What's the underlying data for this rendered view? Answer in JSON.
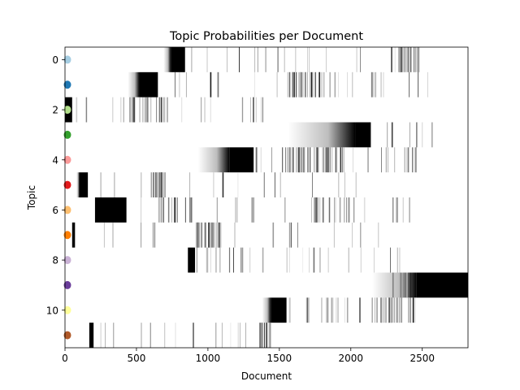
{
  "chart_data": {
    "type": "heatmap",
    "title": "Topic Probabilities per Document",
    "xlabel": "Document",
    "ylabel": "Topic",
    "xlim": [
      0,
      2820
    ],
    "ylim": [
      -0.5,
      11.5
    ],
    "y_inverted": true,
    "x_ticks": [
      0,
      500,
      1000,
      1500,
      2000,
      2500
    ],
    "x_tick_labels": [
      "0",
      "500",
      "1000",
      "1500",
      "2000",
      "2500"
    ],
    "y_ticks": [
      0,
      2,
      4,
      6,
      8,
      10
    ],
    "y_tick_labels": [
      "0",
      "2",
      "4",
      "6",
      "8",
      "10"
    ],
    "colormap": "Greys",
    "value_range": [
      0,
      1
    ],
    "topic_colors": [
      "#a6cee3",
      "#1f78b4",
      "#b2df8a",
      "#33a02c",
      "#fb9a99",
      "#e31a1c",
      "#fdbf6f",
      "#ff7f00",
      "#cab2d6",
      "#6a3d9a",
      "#ffff99",
      "#b15928"
    ],
    "rows": [
      {
        "topic": 0,
        "solid": [
          [
            740,
            840
          ]
        ],
        "fade_in": [
          [
            690,
            740
          ]
        ],
        "lines_range": [
          850,
          2480
        ],
        "dense_ranges": [
          [
            2280,
            2480
          ]
        ],
        "line_count": 44
      },
      {
        "topic": 1,
        "solid": [
          [
            520,
            650
          ]
        ],
        "fade_in": [
          [
            440,
            520
          ]
        ],
        "lines_range": [
          660,
          2540
        ],
        "dense_ranges": [
          [
            1560,
            1800
          ]
        ],
        "line_count": 60
      },
      {
        "topic": 2,
        "solid": [
          [
            0,
            50
          ]
        ],
        "fade_in": [],
        "lines_range": [
          60,
          1460
        ],
        "dense_ranges": [
          [
            450,
            700
          ]
        ],
        "line_count": 48
      },
      {
        "topic": 3,
        "solid": [
          [
            2030,
            2140
          ]
        ],
        "fade_in": [
          [
            1560,
            2030
          ]
        ],
        "lines_range": [
          2150,
          2600
        ],
        "dense_ranges": [],
        "line_count": 6
      },
      {
        "topic": 4,
        "solid": [
          [
            1150,
            1320
          ]
        ],
        "fade_in": [
          [
            930,
            1150
          ]
        ],
        "lines_range": [
          1330,
          2500
        ],
        "dense_ranges": [
          [
            1560,
            1950
          ]
        ],
        "line_count": 70
      },
      {
        "topic": 5,
        "solid": [
          [
            100,
            160
          ]
        ],
        "fade_in": [
          [
            80,
            100
          ]
        ],
        "lines_range": [
          170,
          2320
        ],
        "dense_ranges": [
          [
            600,
            700
          ]
        ],
        "line_count": 40
      },
      {
        "topic": 6,
        "solid": [
          [
            210,
            430
          ]
        ],
        "fade_in": [],
        "lines_range": [
          440,
          2430
        ],
        "dense_ranges": [
          [
            650,
            900
          ],
          [
            1700,
            2000
          ]
        ],
        "line_count": 56
      },
      {
        "topic": 7,
        "solid": [
          [
            50,
            70
          ]
        ],
        "fade_in": [],
        "lines_range": [
          80,
          2460
        ],
        "dense_ranges": [
          [
            900,
            1100
          ]
        ],
        "line_count": 44
      },
      {
        "topic": 8,
        "solid": [
          [
            860,
            910
          ]
        ],
        "fade_in": [],
        "lines_range": [
          920,
          2360
        ],
        "dense_ranges": [],
        "line_count": 26
      },
      {
        "topic": 9,
        "solid": [
          [
            2460,
            2820
          ]
        ],
        "fade_in": [
          [
            2150,
            2460
          ]
        ],
        "lines_range": [
          2200,
          2460
        ],
        "dense_ranges": [],
        "line_count": 6
      },
      {
        "topic": 10,
        "solid": [
          [
            1440,
            1550
          ]
        ],
        "fade_in": [
          [
            1380,
            1440
          ]
        ],
        "lines_range": [
          1560,
          2460
        ],
        "dense_ranges": [
          [
            2200,
            2460
          ]
        ],
        "line_count": 48
      },
      {
        "topic": 11,
        "solid": [
          [
            170,
            200
          ]
        ],
        "fade_in": [],
        "lines_range": [
          210,
          1440
        ],
        "dense_ranges": [
          [
            1350,
            1440
          ]
        ],
        "line_count": 30
      }
    ]
  }
}
